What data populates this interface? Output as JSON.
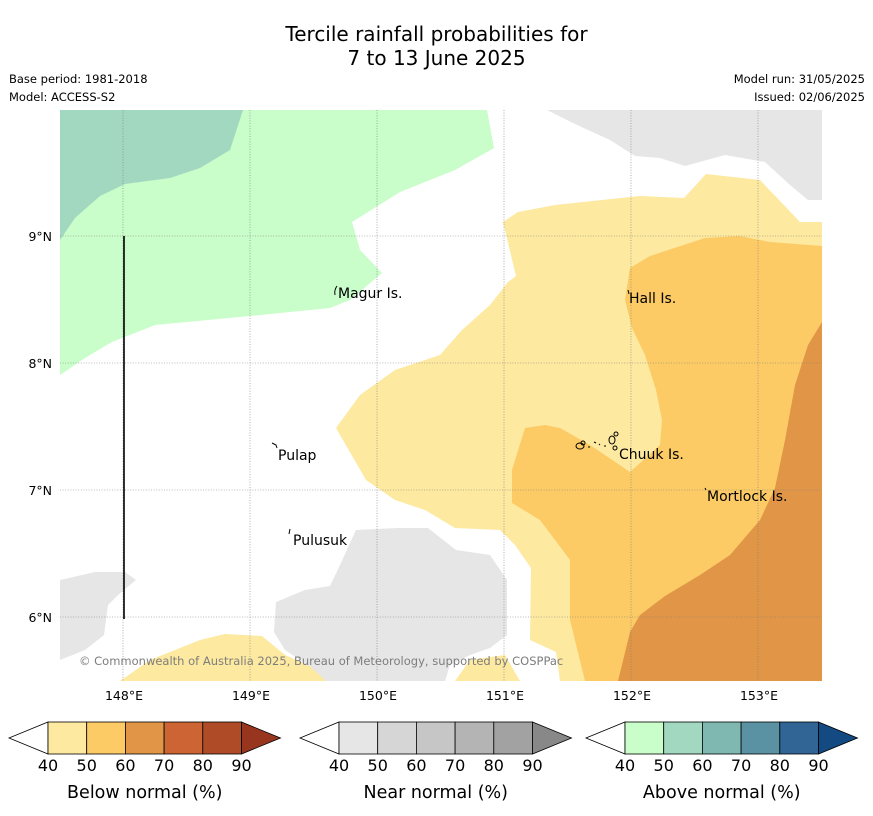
{
  "title": {
    "line1": "Tercile rainfall probabilities for",
    "line2": "7 to 13 June 2025"
  },
  "metadata": {
    "base_period": "Base period: 1981-2018",
    "model": "Model: ACCESS-S2",
    "model_run": "Model run: 31/05/2025",
    "issued": "Issued: 02/06/2025"
  },
  "map": {
    "x_ticks": [
      "148°E",
      "149°E",
      "150°E",
      "151°E",
      "152°E",
      "153°E"
    ],
    "y_ticks": [
      "9°N",
      "8°N",
      "7°N",
      "6°N"
    ],
    "places": {
      "magur": "Magur Is.",
      "hall": "Hall Is.",
      "pulap": "Pulap",
      "chuuk": "Chuuk Is.",
      "mortlock": "Mortlock Is.",
      "pulusuk": "Pulusuk"
    },
    "copyright": "© Commonwealth of Australia 2025, Bureau of Meteorology, supported by COSPPac"
  },
  "legends": [
    {
      "title": "Below normal (%)",
      "ticks": [
        "40",
        "50",
        "60",
        "70",
        "80",
        "90"
      ],
      "colors": [
        "#ffffff",
        "#fde9a0",
        "#fccb66",
        "#e09646",
        "#cd6433",
        "#b04b28",
        "#98351f"
      ]
    },
    {
      "title": "Near normal (%)",
      "ticks": [
        "40",
        "50",
        "60",
        "70",
        "80",
        "90"
      ],
      "colors": [
        "#ffffff",
        "#e6e6e6",
        "#d6d6d6",
        "#c6c6c6",
        "#b4b4b4",
        "#a2a2a2",
        "#888888"
      ]
    },
    {
      "title": "Above normal (%)",
      "ticks": [
        "40",
        "50",
        "60",
        "70",
        "80",
        "90"
      ],
      "colors": [
        "#ffffff",
        "#c9fdc9",
        "#a2d8bf",
        "#7fb8b0",
        "#5a92a3",
        "#306596",
        "#134a82"
      ]
    }
  ]
}
